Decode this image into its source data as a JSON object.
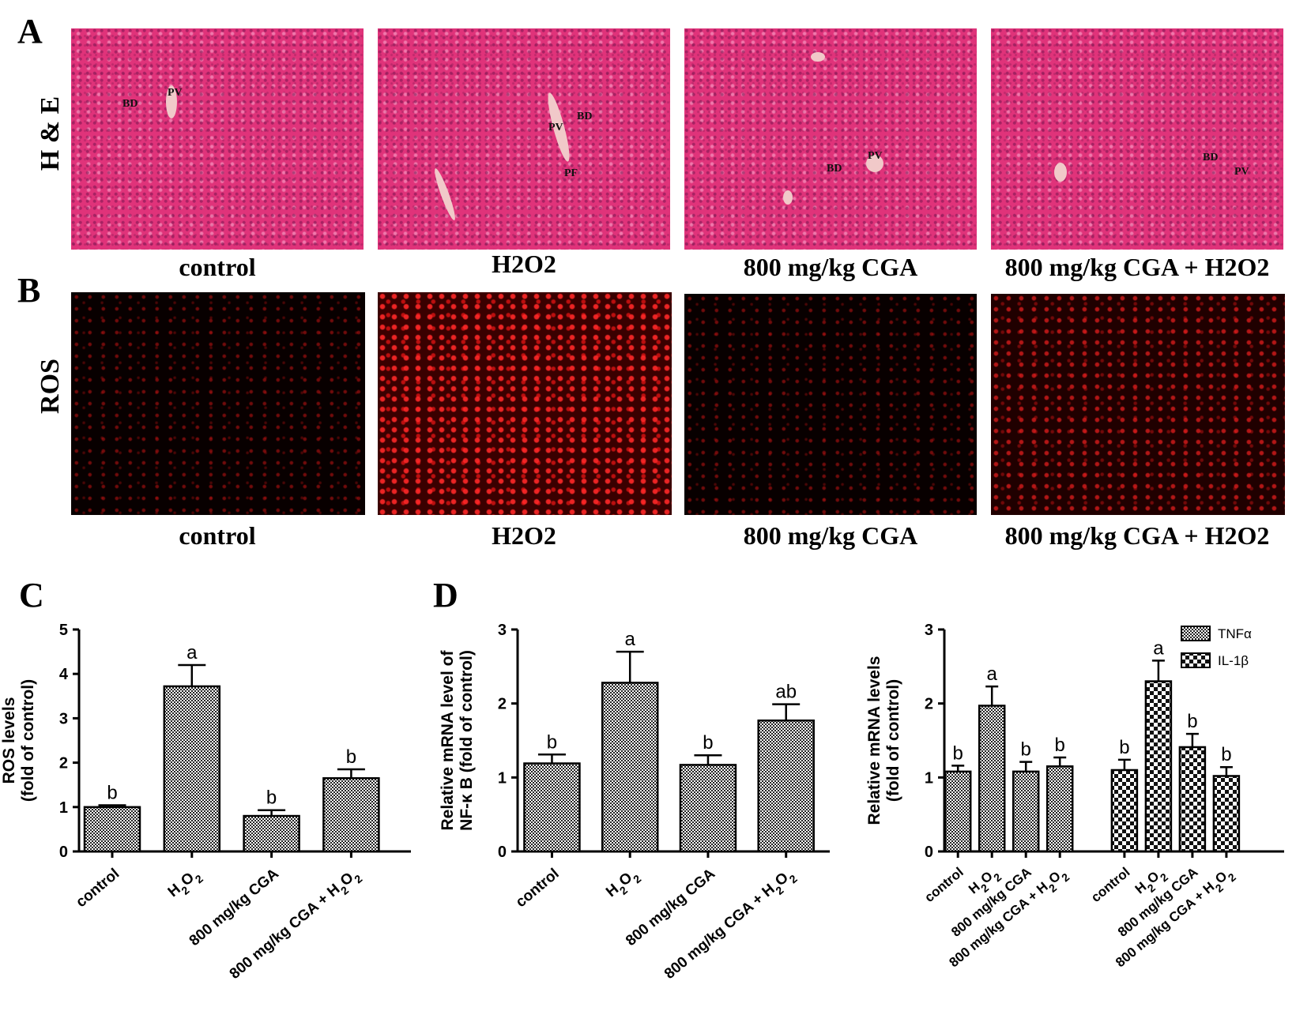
{
  "panels": {
    "A": "A",
    "B": "B",
    "C": "C",
    "D": "D"
  },
  "row_labels": {
    "he": "H & E",
    "ros": "ROS"
  },
  "conditions": [
    "control",
    "H2O2",
    "800 mg/kg CGA",
    "800 mg/kg CGA + H2O2"
  ],
  "annotations": {
    "bd": "BD",
    "pv": "PV",
    "pf": "PF"
  },
  "colors": {
    "he_stain": "#e0337a",
    "ros_signal": "#ff2828",
    "bar_fill_pattern": "#000000"
  },
  "chart_data": [
    {
      "type": "bar",
      "panel": "C",
      "categories": [
        "control",
        "H₂O₂",
        "800 mg/kg CGA",
        "800 mg/kg CGA + H₂O₂"
      ],
      "values": [
        1.0,
        3.72,
        0.8,
        1.65
      ],
      "errors": [
        0.04,
        0.48,
        0.13,
        0.2
      ],
      "significance": [
        "b",
        "a",
        "b",
        "b"
      ],
      "ylabel": "ROS levels\n(fold of control)",
      "ylim": [
        0,
        5
      ],
      "yticks": [
        0,
        1,
        2,
        3,
        4,
        5
      ]
    },
    {
      "type": "bar",
      "panel": "D-left",
      "categories": [
        "control",
        "H₂O₂",
        "800 mg/kg CGA",
        "800 mg/kg CGA + H₂O₂"
      ],
      "values": [
        1.19,
        2.28,
        1.17,
        1.77
      ],
      "errors": [
        0.12,
        0.42,
        0.13,
        0.22
      ],
      "significance": [
        "b",
        "a",
        "b",
        "ab"
      ],
      "ylabel": "Relative mRNA level of\nNF-κ B (fold of control)",
      "ylim": [
        0,
        3
      ],
      "yticks": [
        0,
        1,
        2,
        3
      ]
    },
    {
      "type": "bar",
      "panel": "D-right",
      "categories": [
        "control",
        "H₂O₂",
        "800 mg/kg CGA",
        "800 mg/kg CGA + H₂O₂"
      ],
      "series": [
        {
          "name": "TNFα",
          "values": [
            1.08,
            1.97,
            1.08,
            1.15
          ],
          "errors": [
            0.08,
            0.26,
            0.13,
            0.12
          ],
          "significance": [
            "b",
            "a",
            "b",
            "b"
          ]
        },
        {
          "name": "IL-1β",
          "values": [
            1.1,
            2.3,
            1.41,
            1.02
          ],
          "errors": [
            0.14,
            0.28,
            0.18,
            0.12
          ],
          "significance": [
            "b",
            "a",
            "b",
            "b"
          ]
        }
      ],
      "ylabel": "Relative mRNA levels\n(fold of control)",
      "ylim": [
        0,
        3
      ],
      "yticks": [
        0,
        1,
        2,
        3
      ],
      "legend_position": "top-right"
    }
  ]
}
